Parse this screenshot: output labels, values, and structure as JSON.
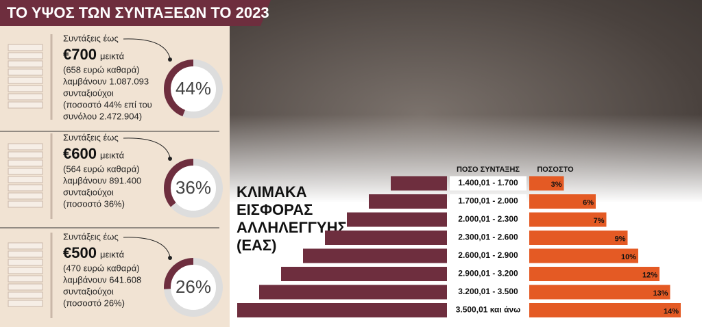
{
  "header": {
    "title": "ΤΟ ΥΨΟΣ ΤΩΝ ΣΥΝΤΑΞΕΩΝ ΤΟ 2023"
  },
  "panels": [
    {
      "lead": "Συντάξεις έως",
      "amount": "€700",
      "unit": "μεικτά",
      "lines": [
        "(658 ευρώ καθαρά)",
        "λαμβάνουν 1.087.093",
        "συνταξιούχοι",
        "(ποσοστό 44% επί του",
        "συνόλου 2.472.904)"
      ],
      "share": {
        "value": 44,
        "label": "44%"
      }
    },
    {
      "lead": "Συντάξεις έως",
      "amount": "€600",
      "unit": "μεικτά",
      "lines": [
        "(564 ευρώ καθαρά)",
        "λαμβάνουν 891.400",
        "συνταξιούχοι",
        "(ποσοστό 36%)"
      ],
      "share": {
        "value": 36,
        "label": "36%"
      }
    },
    {
      "lead": "Συντάξεις έως",
      "amount": "€500",
      "unit": "μεικτά",
      "lines": [
        "(470 ευρώ καθαρά)",
        "λαμβάνουν 641.608",
        "συνταξιούχοι",
        "(ποσοστό 26%)"
      ],
      "share": {
        "value": 26,
        "label": "26%"
      }
    }
  ],
  "table": {
    "title": [
      "ΚΛΙΜΑΚΑ",
      "ΕΙΣΦΟΡΑΣ",
      "ΑΛΛΗΛΕΓΓΥΗΣ",
      "(ΕΑΣ)"
    ],
    "headers": [
      "ΠΟΣΟ ΣΥΝΤΑΞΗΣ",
      "ΠΟΣΟΣΤΟ"
    ],
    "rows": [
      {
        "range": "1.400,01 - 1.700",
        "rate": {
          "value": 3,
          "label": "3%"
        }
      },
      {
        "range": "1.700,01 - 2.000",
        "rate": {
          "value": 6,
          "label": "6%"
        }
      },
      {
        "range": "2.000,01 - 2.300",
        "rate": {
          "value": 7,
          "label": "7%"
        }
      },
      {
        "range": "2.300,01 - 2.600",
        "rate": {
          "value": 9,
          "label": "9%"
        }
      },
      {
        "range": "2.600,01 - 2.900",
        "rate": {
          "value": 10,
          "label": "10%"
        }
      },
      {
        "range": "2.900,01 - 3.200",
        "rate": {
          "value": 12,
          "label": "12%"
        }
      },
      {
        "range": "3.200,01 - 3.500",
        "rate": {
          "value": 13,
          "label": "13%"
        }
      },
      {
        "range": "3.500,01 και άνω",
        "rate": {
          "value": 14,
          "label": "14%"
        }
      }
    ]
  }
}
